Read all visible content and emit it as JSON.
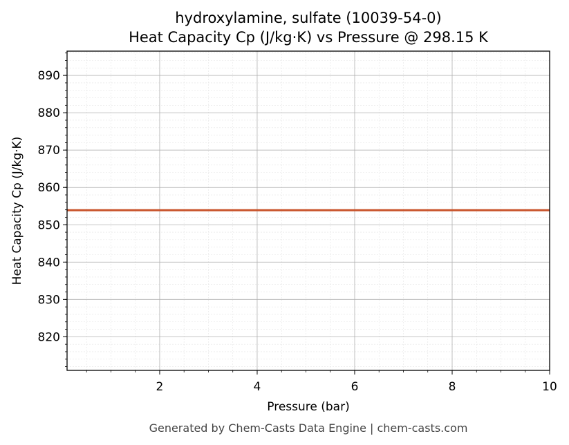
{
  "chart_data": {
    "type": "line",
    "title": "hydroxylamine, sulfate (10039-54-0)",
    "subtitle": "Heat Capacity Cp (J/kg·K) vs Pressure @ 298.15 K",
    "xlabel": "Pressure (bar)",
    "ylabel": "Heat Capacity Cp (J/kg·K)",
    "xlim": [
      0.1,
      10
    ],
    "ylim": [
      811,
      896.5
    ],
    "x_ticks": [
      2,
      4,
      6,
      8,
      10
    ],
    "y_ticks": [
      820,
      830,
      840,
      850,
      860,
      870,
      880,
      890
    ],
    "grid": true,
    "series": [
      {
        "color": "#c8522a",
        "x": [
          0.1,
          1,
          2,
          3,
          4,
          5,
          6,
          7,
          8,
          9,
          10
        ],
        "y": [
          853.9,
          853.9,
          853.9,
          853.9,
          853.9,
          853.9,
          853.9,
          853.9,
          853.9,
          853.9,
          853.9
        ]
      }
    ]
  },
  "footer": {
    "text": "Generated by Chem-Casts Data Engine | chem-casts.com"
  }
}
